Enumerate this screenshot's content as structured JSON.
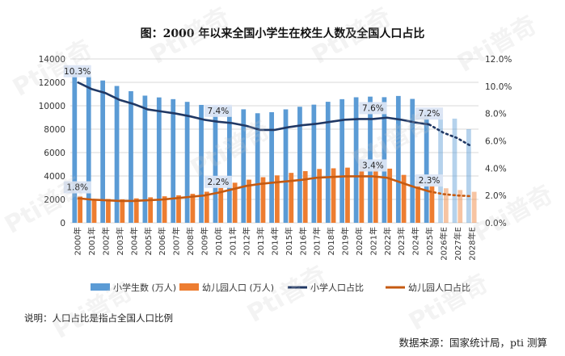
{
  "title": "图：2000 年以来全国小学生在校生人数及全国人口占比",
  "note": "说明：人口占比是指占全国人口比例",
  "source": "数据来源：国家统计局，pti 测算",
  "watermark": "Pti普奇",
  "chart_data": {
    "type": "bar",
    "categories": [
      "2000年",
      "2001年",
      "2002年",
      "2003年",
      "2004年",
      "2005年",
      "2006年",
      "2007年",
      "2008年",
      "2009年",
      "2010年",
      "2011年",
      "2012年",
      "2013年",
      "2014年",
      "2015年",
      "2016年",
      "2017年",
      "2018年",
      "2019年",
      "2020年",
      "2021年",
      "2022年",
      "2023年",
      "2024年",
      "2025年",
      "2026年E",
      "2027年E",
      "2028年E"
    ],
    "forecast_start_index": 26,
    "ylim_left": [
      0,
      14000
    ],
    "yticks_left": [
      "0",
      "2000",
      "4000",
      "6000",
      "8000",
      "10000",
      "12000",
      "14000"
    ],
    "ylim_right": [
      0,
      12
    ],
    "yticks_right": [
      "0.0%",
      "2.0%",
      "4.0%",
      "6.0%",
      "8.0%",
      "10.0%",
      "12.0%"
    ],
    "grid": true,
    "legend_position": "bottom",
    "series": [
      {
        "name": "小学生数 (万人)",
        "kind": "bar",
        "axis": "left",
        "color": "#5B9BD5",
        "values": [
          13013,
          12543,
          12157,
          11690,
          11246,
          10864,
          10712,
          10564,
          10332,
          10072,
          9941,
          9926,
          9696,
          9361,
          9451,
          9692,
          9913,
          10094,
          10339,
          10561,
          10725,
          10780,
          10732,
          10836,
          10584,
          9500,
          9300,
          8900,
          8000
        ]
      },
      {
        "name": "幼儿园人口 (万人)",
        "kind": "bar",
        "axis": "left",
        "color": "#ED7D31",
        "values": [
          2244,
          2022,
          2036,
          2004,
          2089,
          2179,
          2264,
          2349,
          2475,
          2658,
          2977,
          3424,
          3686,
          3895,
          4051,
          4265,
          4414,
          4600,
          4656,
          4714,
          4818,
          4805,
          4628,
          4093,
          3584,
          3200,
          2950,
          2800,
          2650
        ]
      },
      {
        "name": "小学人口占比",
        "kind": "line",
        "axis": "right",
        "color": "#203864",
        "values": [
          10.3,
          9.8,
          9.5,
          9.0,
          8.7,
          8.3,
          8.15,
          8.0,
          7.8,
          7.55,
          7.4,
          7.3,
          7.1,
          6.8,
          6.8,
          7.0,
          7.15,
          7.25,
          7.4,
          7.55,
          7.6,
          7.6,
          7.7,
          7.55,
          7.35,
          7.2,
          6.6,
          6.2,
          5.6
        ]
      },
      {
        "name": "幼儿园人口占比",
        "kind": "line",
        "axis": "right",
        "color": "#C55A11",
        "values": [
          1.8,
          1.7,
          1.65,
          1.6,
          1.6,
          1.65,
          1.7,
          1.8,
          1.9,
          2.0,
          2.2,
          2.45,
          2.7,
          2.85,
          2.95,
          3.05,
          3.15,
          3.3,
          3.35,
          3.4,
          3.4,
          3.4,
          3.3,
          2.95,
          2.6,
          2.3,
          2.1,
          2.0,
          1.95
        ]
      }
    ],
    "data_labels": [
      {
        "series": 2,
        "index": 0,
        "text": "10.3%"
      },
      {
        "series": 2,
        "index": 10,
        "text": "7.4%"
      },
      {
        "series": 2,
        "index": 21,
        "text": "7.6%"
      },
      {
        "series": 2,
        "index": 25,
        "text": "7.2%"
      },
      {
        "series": 3,
        "index": 0,
        "text": "1.8%"
      },
      {
        "series": 3,
        "index": 10,
        "text": "2.2%"
      },
      {
        "series": 3,
        "index": 21,
        "text": "3.4%"
      },
      {
        "series": 3,
        "index": 25,
        "text": "2.3%"
      }
    ]
  }
}
